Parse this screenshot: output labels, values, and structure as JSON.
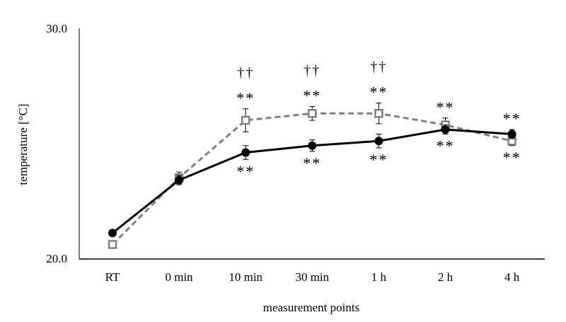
{
  "chart_data": {
    "type": "line",
    "title": "",
    "xlabel": "measurement points",
    "ylabel": "temperature [°C]",
    "ylim": [
      20.0,
      30.0
    ],
    "yticks": [
      "20.0",
      "30.0"
    ],
    "categories": [
      "RT",
      "0 min",
      "10 min",
      "30 min",
      "1 h",
      "2 h",
      "4 h"
    ],
    "grid": false,
    "series": [
      {
        "name": "series 1 (solid, filled circle)",
        "color": "#000000",
        "values": [
          21.1,
          23.4,
          24.6,
          24.9,
          25.1,
          25.6,
          25.4
        ],
        "errors": [
          0.1,
          0.2,
          0.3,
          0.25,
          0.3,
          0.2,
          0.2
        ]
      },
      {
        "name": "series 2 (dashed, open square)",
        "color": "#808080",
        "values": [
          20.6,
          23.5,
          26.0,
          26.3,
          26.3,
          25.8,
          25.1
        ],
        "errors": [
          0.15,
          0.25,
          0.5,
          0.3,
          0.45,
          0.3,
          0.2
        ]
      }
    ],
    "annotations": [
      {
        "category": "10 min",
        "position": "above series 2",
        "text": "††"
      },
      {
        "category": "30 min",
        "position": "above series 2",
        "text": "††"
      },
      {
        "category": "1 h",
        "position": "above series 2",
        "text": "††"
      },
      {
        "category": "10 min",
        "position": "above series 2",
        "text": "**"
      },
      {
        "category": "30 min",
        "position": "above series 2",
        "text": "**"
      },
      {
        "category": "1 h",
        "position": "above series 2",
        "text": "**"
      },
      {
        "category": "2 h",
        "position": "above series 2",
        "text": "**"
      },
      {
        "category": "4 h",
        "position": "above series 1",
        "text": "**"
      },
      {
        "category": "10 min",
        "position": "below series 1",
        "text": "**"
      },
      {
        "category": "30 min",
        "position": "below series 1",
        "text": "**"
      },
      {
        "category": "1 h",
        "position": "below series 1",
        "text": "**"
      },
      {
        "category": "2 h",
        "position": "below series 1",
        "text": "**"
      },
      {
        "category": "4 h",
        "position": "below series 2",
        "text": "**"
      }
    ]
  }
}
